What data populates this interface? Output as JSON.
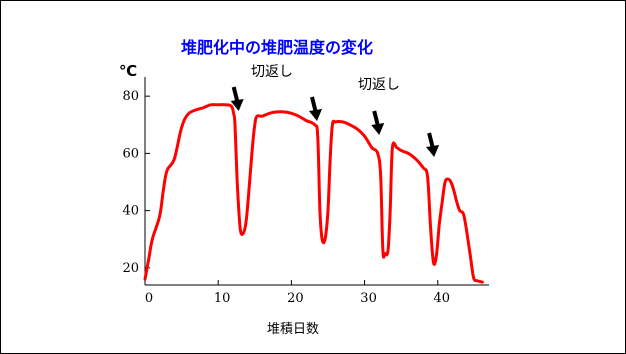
{
  "chart_data": {
    "type": "line",
    "title": "堆肥化中の堆肥温度の変化",
    "ylabel": "℃",
    "xlabel": "堆積日数",
    "xlim": [
      0,
      47
    ],
    "ylim": [
      14,
      86
    ],
    "xticks": [
      0,
      10,
      20,
      30,
      40
    ],
    "yticks": [
      20,
      40,
      60,
      80
    ],
    "grid": false,
    "line_color": "#ff0000",
    "arrow_color": "#000000",
    "annotations": [
      "切返し",
      "切返し"
    ],
    "arrows_at_day": [
      12.8,
      23.5,
      32.0,
      39.5
    ],
    "series": [
      {
        "x": [
          0,
          0.5,
          1,
          2,
          2.5,
          3,
          4,
          5,
          6,
          8,
          9,
          10,
          11,
          11.8,
          12.1,
          12.3,
          12.6,
          13,
          13.4,
          13.8,
          14.2,
          14.6,
          15,
          15.3,
          16,
          17,
          18,
          19,
          20,
          21,
          22,
          23.2,
          23.6,
          23.9,
          24.2,
          24.6,
          25,
          25.3,
          25.6,
          26,
          27,
          28,
          29,
          30,
          31,
          31.8,
          32.2,
          32.5,
          32.8,
          33.2,
          33.5,
          33.8,
          34.4,
          35,
          36,
          37,
          38,
          38.6,
          39,
          39.4,
          39.8,
          40.2,
          40.6,
          41,
          41.4,
          41.8,
          42.2,
          42.6,
          43,
          43.6,
          44.4,
          44.9,
          45.4,
          46.1
        ],
        "y": [
          16,
          23,
          30,
          38,
          47,
          54,
          58,
          69,
          74,
          76,
          77,
          77,
          77,
          76.5,
          74,
          70,
          50,
          34,
          32,
          36,
          47,
          60,
          70,
          73,
          73,
          74,
          74.5,
          74.5,
          74,
          73,
          71.5,
          70,
          66,
          40,
          30,
          30,
          40,
          58,
          70,
          71,
          71,
          70,
          68.5,
          66,
          62,
          60,
          52,
          26,
          25,
          26,
          40,
          62,
          62,
          61,
          60,
          58,
          55,
          52,
          35,
          22,
          24,
          35,
          43,
          50,
          51,
          50,
          47,
          43,
          40,
          38,
          25,
          16.5,
          15.5,
          15
        ]
      }
    ]
  }
}
